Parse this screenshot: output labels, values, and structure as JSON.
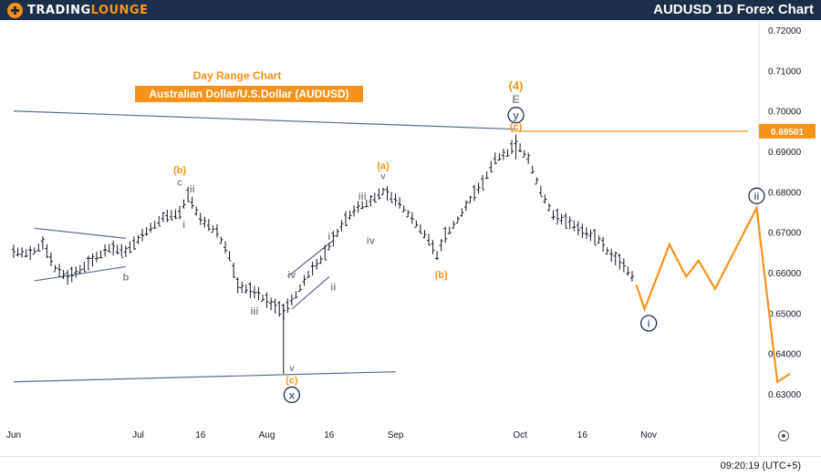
{
  "header": {
    "brand_prefix": "TRADING",
    "brand_suffix": "LOUNGE",
    "title": "AUDUSD 1D Forex Chart"
  },
  "footer": {
    "time": "09:20:19 (UTC+5)"
  },
  "colors": {
    "orange": "#f7931a",
    "navy": "#1c2e4a",
    "gray": "#8a8a8a",
    "blue_gray": "#5b6b8c"
  },
  "icons": [
    "settings-icon",
    "brand-logo-icon"
  ],
  "chart_data": {
    "type": "candlestick",
    "title": "Day Range Chart",
    "subtitle": "Australian Dollar/U.S.Dollar (AUDUSD)",
    "y_ticks": [
      "0.72000",
      "0.71000",
      "0.70000",
      "0.69000",
      "0.68000",
      "0.67000",
      "0.66000",
      "0.65000",
      "0.64000",
      "0.63000"
    ],
    "ylim": [
      0.6255,
      0.7225
    ],
    "current_price": "0.69501",
    "x_ticks": [
      "Jun",
      "Jul",
      "16",
      "Aug",
      "16",
      "Sep",
      "Oct",
      "16",
      "Nov"
    ],
    "x_tick_dates": [
      "2024-06-01",
      "2024-07-01",
      "2024-07-16",
      "2024-08-01",
      "2024-08-16",
      "2024-09-01",
      "2024-10-01",
      "2024-10-16",
      "2024-11-01"
    ],
    "price_series": [
      [
        "2024-06-01",
        0.665
      ],
      [
        "2024-06-05",
        0.6645
      ],
      [
        "2024-06-08",
        0.667
      ],
      [
        "2024-06-11",
        0.661
      ],
      [
        "2024-06-14",
        0.6585
      ],
      [
        "2024-06-19",
        0.662
      ],
      [
        "2024-06-24",
        0.666
      ],
      [
        "2024-06-28",
        0.665
      ],
      [
        "2024-07-03",
        0.67
      ],
      [
        "2024-07-07",
        0.6735
      ],
      [
        "2024-07-11",
        0.6745
      ],
      [
        "2024-07-13",
        0.679
      ],
      [
        "2024-07-16",
        0.673
      ],
      [
        "2024-07-20",
        0.67
      ],
      [
        "2024-07-23",
        0.664
      ],
      [
        "2024-07-25",
        0.6565
      ],
      [
        "2024-07-30",
        0.6545
      ],
      [
        "2024-08-02",
        0.652
      ],
      [
        "2024-08-05",
        0.65
      ],
      [
        "2024-08-08",
        0.6545
      ],
      [
        "2024-08-11",
        0.6595
      ],
      [
        "2024-08-14",
        0.663
      ],
      [
        "2024-08-17",
        0.668
      ],
      [
        "2024-08-20",
        0.673
      ],
      [
        "2024-08-23",
        0.676
      ],
      [
        "2024-08-26",
        0.6775
      ],
      [
        "2024-08-29",
        0.68
      ],
      [
        "2024-09-02",
        0.677
      ],
      [
        "2024-09-06",
        0.672
      ],
      [
        "2024-09-09",
        0.668
      ],
      [
        "2024-09-11",
        0.664
      ],
      [
        "2024-09-13",
        0.669
      ],
      [
        "2024-09-16",
        0.673
      ],
      [
        "2024-09-19",
        0.678
      ],
      [
        "2024-09-22",
        0.682
      ],
      [
        "2024-09-25",
        0.688
      ],
      [
        "2024-09-28",
        0.6895
      ],
      [
        "2024-09-30",
        0.692
      ],
      [
        "2024-10-03",
        0.688
      ],
      [
        "2024-10-06",
        0.68
      ],
      [
        "2024-10-09",
        0.674
      ],
      [
        "2024-10-13",
        0.672
      ],
      [
        "2024-10-16",
        0.67
      ],
      [
        "2024-10-20",
        0.668
      ],
      [
        "2024-10-23",
        0.664
      ],
      [
        "2024-10-26",
        0.6615
      ],
      [
        "2024-10-29",
        0.6575
      ]
    ],
    "projection": [
      [
        "2024-10-29",
        0.657
      ],
      [
        "2024-10-31",
        0.651
      ],
      [
        "2024-11-06",
        0.667
      ],
      [
        "2024-11-10",
        0.659
      ],
      [
        "2024-11-13",
        0.663
      ],
      [
        "2024-11-17",
        0.656
      ],
      [
        "2024-11-27",
        0.676
      ],
      [
        "2024-12-02",
        0.633
      ],
      [
        "2024-12-05",
        0.635
      ]
    ],
    "upper_trendline": [
      [
        "2024-06-01",
        0.7
      ],
      [
        "2024-09-30",
        0.6955
      ]
    ],
    "lower_trendline": [
      [
        "2024-06-01",
        0.633
      ],
      [
        "2024-09-01",
        0.6355
      ]
    ],
    "triangle_upper": [
      [
        "2024-06-06",
        0.671
      ],
      [
        "2024-06-28",
        0.6685
      ]
    ],
    "triangle_lower": [
      [
        "2024-06-06",
        0.658
      ],
      [
        "2024-06-28",
        0.6615
      ]
    ],
    "aug_channel_upper": [
      [
        "2024-08-06",
        0.659
      ],
      [
        "2024-08-17",
        0.668
      ]
    ],
    "aug_channel_lower": [
      [
        "2024-08-07",
        0.651
      ],
      [
        "2024-08-16",
        0.659
      ]
    ],
    "resistance_line": [
      [
        "2024-09-29",
        0.69501
      ],
      [
        "2024-11-25",
        0.69501
      ]
    ],
    "labels": [
      {
        "text": "(4)",
        "date": "2024-09-30",
        "price": 0.7063,
        "color": "#f7931a",
        "size": 13,
        "style": "plain"
      },
      {
        "text": "E",
        "date": "2024-09-30",
        "price": 0.703,
        "color": "#8a8a8a",
        "size": 12,
        "style": "plain"
      },
      {
        "text": "y",
        "date": "2024-09-30",
        "price": 0.699,
        "color": "#5b6b8c",
        "size": 12,
        "style": "circle"
      },
      {
        "text": "(c)",
        "date": "2024-09-30",
        "price": 0.6962,
        "color": "#f7931a",
        "size": 11,
        "style": "plain"
      },
      {
        "text": "(b)",
        "date": "2024-07-11",
        "price": 0.6855,
        "color": "#f7931a",
        "size": 11,
        "style": "plain"
      },
      {
        "text": "c",
        "date": "2024-07-11",
        "price": 0.6825,
        "color": "#8a8a8a",
        "size": 11,
        "style": "plain"
      },
      {
        "text": "ii",
        "date": "2024-07-14",
        "price": 0.6808,
        "color": "#8a8a8a",
        "size": 11,
        "style": "plain"
      },
      {
        "text": "i",
        "date": "2024-07-12",
        "price": 0.672,
        "color": "#8a8a8a",
        "size": 11,
        "style": "plain"
      },
      {
        "text": "b",
        "date": "2024-06-28",
        "price": 0.659,
        "color": "#8a8a8a",
        "size": 11,
        "style": "plain"
      },
      {
        "text": "iii",
        "date": "2024-07-29",
        "price": 0.6505,
        "color": "#8a8a8a",
        "size": 11,
        "style": "plain"
      },
      {
        "text": "iv",
        "date": "2024-08-07",
        "price": 0.6595,
        "color": "#8a8a8a",
        "size": 11,
        "style": "plain"
      },
      {
        "text": "v",
        "date": "2024-08-07",
        "price": 0.6365,
        "color": "#8a8a8a",
        "size": 10,
        "style": "plain"
      },
      {
        "text": "(c)",
        "date": "2024-08-07",
        "price": 0.6335,
        "color": "#f7931a",
        "size": 11,
        "style": "plain"
      },
      {
        "text": "x",
        "date": "2024-08-07",
        "price": 0.6298,
        "color": "#5b6b8c",
        "size": 12,
        "style": "circle"
      },
      {
        "text": "i",
        "date": "2024-08-16",
        "price": 0.669,
        "color": "#8a8a8a",
        "size": 11,
        "style": "plain"
      },
      {
        "text": "ii",
        "date": "2024-08-17",
        "price": 0.6565,
        "color": "#8a8a8a",
        "size": 11,
        "style": "plain"
      },
      {
        "text": "iii",
        "date": "2024-08-24",
        "price": 0.679,
        "color": "#8a8a8a",
        "size": 11,
        "style": "plain"
      },
      {
        "text": "iv",
        "date": "2024-08-26",
        "price": 0.668,
        "color": "#8a8a8a",
        "size": 11,
        "style": "plain"
      },
      {
        "text": "(a)",
        "date": "2024-08-29",
        "price": 0.6865,
        "color": "#f7931a",
        "size": 11,
        "style": "plain"
      },
      {
        "text": "v",
        "date": "2024-08-29",
        "price": 0.684,
        "color": "#8a8a8a",
        "size": 10,
        "style": "plain"
      },
      {
        "text": "(b)",
        "date": "2024-09-12",
        "price": 0.6595,
        "color": "#f7931a",
        "size": 11,
        "style": "plain"
      },
      {
        "text": "i",
        "date": "2024-11-01",
        "price": 0.6475,
        "color": "#5b6b8c",
        "size": 11,
        "style": "circle"
      },
      {
        "text": "ii",
        "date": "2024-11-27",
        "price": 0.679,
        "color": "#5b6b8c",
        "size": 11,
        "style": "circle"
      }
    ]
  }
}
